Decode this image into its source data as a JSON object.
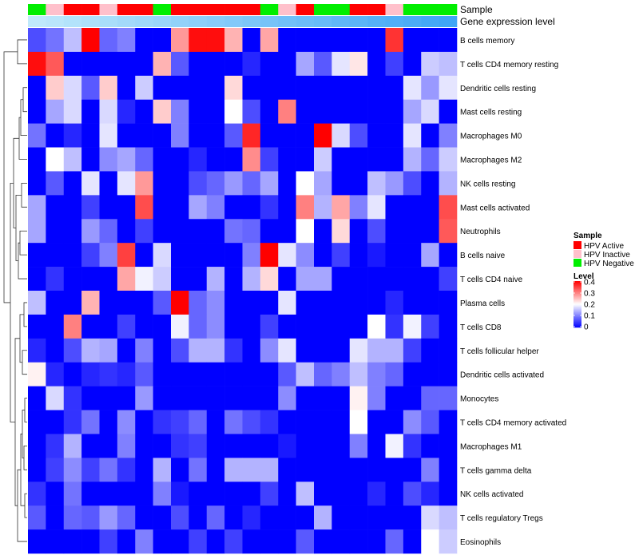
{
  "chart_data": {
    "type": "heatmap",
    "annotation_labels": {
      "sample": "Sample",
      "level": "Gene expression level"
    },
    "rows": [
      "B cells memory",
      "T cells CD4 memory resting",
      "Dendritic cells resting",
      "Mast cells resting",
      "Macrophages M0",
      "Macrophages M2",
      "NK cells resting",
      "Mast cells activated",
      "Neutrophils",
      "B cells naive",
      "T cells CD4 naive",
      "Plasma cells",
      "T cells CD8",
      "T cells follicular helper",
      "Dendritic cells activated",
      "Monocytes",
      "T cells CD4 memory activated",
      "Macrophages M1",
      "T cells gamma delta",
      "NK cells activated",
      "T cells regulatory  Tregs",
      "Eosinophils"
    ],
    "sample_groups": [
      "HPV Negative",
      "HPV Inactive",
      "HPV Active",
      "HPV Active",
      "HPV Inactive",
      "HPV Active",
      "HPV Active",
      "HPV Negative",
      "HPV Active",
      "HPV Active",
      "HPV Active",
      "HPV Active",
      "HPV Active",
      "HPV Negative",
      "HPV Inactive",
      "HPV Active",
      "HPV Negative",
      "HPV Negative",
      "HPV Active",
      "HPV Active",
      "HPV Inactive",
      "HPV Negative",
      "HPV Negative",
      "HPV Negative"
    ],
    "expression_gradient": [
      0.0,
      0.04,
      0.09,
      0.13,
      0.17,
      0.22,
      0.26,
      0.3,
      0.35,
      0.39,
      0.43,
      0.48,
      0.52,
      0.56,
      0.61,
      0.65,
      0.69,
      0.74,
      0.78,
      0.83,
      0.87,
      0.91,
      0.96,
      1.0
    ],
    "values": [
      [
        0.06,
        0.09,
        0.15,
        0.4,
        0.08,
        0.1,
        0.0,
        0.0,
        0.28,
        0.39,
        0.39,
        0.26,
        0.0,
        0.27,
        0.0,
        0.0,
        0.0,
        0.0,
        0.0,
        0.0,
        0.36,
        0.0,
        0.0,
        0.0
      ],
      [
        0.39,
        0.33,
        0.0,
        0.0,
        0.0,
        0.0,
        0.0,
        0.26,
        0.07,
        0.0,
        0.0,
        0.0,
        0.03,
        0.0,
        0.0,
        0.13,
        0.07,
        0.18,
        0.22,
        0.0,
        0.05,
        0.0,
        0.16,
        0.15
      ],
      [
        0.0,
        0.24,
        0.17,
        0.07,
        0.24,
        0.0,
        0.16,
        0.0,
        0.0,
        0.0,
        0.0,
        0.23,
        0.0,
        0.0,
        0.0,
        0.0,
        0.0,
        0.0,
        0.0,
        0.0,
        0.0,
        0.18,
        0.12,
        0.18
      ],
      [
        0.0,
        0.13,
        0.17,
        0.0,
        0.17,
        0.03,
        0.0,
        0.24,
        0.1,
        0.0,
        0.0,
        0.2,
        0.06,
        0.0,
        0.3,
        0.0,
        0.0,
        0.0,
        0.0,
        0.0,
        0.0,
        0.13,
        0.17,
        0.0
      ],
      [
        0.09,
        0.0,
        0.03,
        0.0,
        0.18,
        0.0,
        0.0,
        0.0,
        0.1,
        0.0,
        0.0,
        0.07,
        0.37,
        0.0,
        0.0,
        0.0,
        0.4,
        0.17,
        0.06,
        0.0,
        0.0,
        0.18,
        0.0,
        0.1
      ],
      [
        0.0,
        0.2,
        0.15,
        0.0,
        0.11,
        0.13,
        0.08,
        0.0,
        0.0,
        0.03,
        0.0,
        0.0,
        0.29,
        0.05,
        0.0,
        0.0,
        0.16,
        0.0,
        0.0,
        0.0,
        0.0,
        0.14,
        0.08,
        0.16
      ],
      [
        0.0,
        0.07,
        0.0,
        0.18,
        0.0,
        0.18,
        0.28,
        0.0,
        0.0,
        0.06,
        0.08,
        0.12,
        0.08,
        0.13,
        0.0,
        0.2,
        0.13,
        0.0,
        0.0,
        0.15,
        0.12,
        0.06,
        0.0,
        0.14
      ],
      [
        0.13,
        0.0,
        0.0,
        0.05,
        0.0,
        0.0,
        0.34,
        0.0,
        0.0,
        0.13,
        0.1,
        0.0,
        0.0,
        0.04,
        0.0,
        0.3,
        0.14,
        0.27,
        0.1,
        0.18,
        0.0,
        0.0,
        0.0,
        0.34
      ],
      [
        0.13,
        0.0,
        0.0,
        0.12,
        0.08,
        0.0,
        0.05,
        0.0,
        0.0,
        0.0,
        0.0,
        0.09,
        0.08,
        0.0,
        0.0,
        0.2,
        0.0,
        0.23,
        0.0,
        0.06,
        0.0,
        0.0,
        0.0,
        0.33
      ],
      [
        0.0,
        0.0,
        0.0,
        0.05,
        0.1,
        0.35,
        0.0,
        0.17,
        0.0,
        0.0,
        0.0,
        0.0,
        0.1,
        0.4,
        0.18,
        0.11,
        0.0,
        0.05,
        0.0,
        0.02,
        0.0,
        0.0,
        0.13,
        0.0
      ],
      [
        0.0,
        0.04,
        0.0,
        0.0,
        0.0,
        0.27,
        0.19,
        0.16,
        0.0,
        0.0,
        0.14,
        0.0,
        0.14,
        0.23,
        0.0,
        0.13,
        0.13,
        0.0,
        0.0,
        0.0,
        0.0,
        0.0,
        0.0,
        0.05
      ],
      [
        0.15,
        0.0,
        0.0,
        0.26,
        0.0,
        0.0,
        0.0,
        0.07,
        0.4,
        0.08,
        0.11,
        0.0,
        0.0,
        0.0,
        0.18,
        0.0,
        0.0,
        0.0,
        0.0,
        0.0,
        0.03,
        0.0,
        0.0,
        0.0
      ],
      [
        0.0,
        0.0,
        0.3,
        0.0,
        0.0,
        0.05,
        0.0,
        0.0,
        0.19,
        0.08,
        0.11,
        0.0,
        0.0,
        0.05,
        0.0,
        0.0,
        0.0,
        0.0,
        0.0,
        0.2,
        0.04,
        0.19,
        0.05,
        0.0
      ],
      [
        0.03,
        0.0,
        0.06,
        0.14,
        0.13,
        0.0,
        0.1,
        0.0,
        0.06,
        0.14,
        0.14,
        0.04,
        0.0,
        0.11,
        0.18,
        0.0,
        0.0,
        0.0,
        0.18,
        0.14,
        0.14,
        0.05,
        0.0,
        0.0
      ],
      [
        0.21,
        0.03,
        0.0,
        0.03,
        0.04,
        0.03,
        0.07,
        0.0,
        0.0,
        0.0,
        0.0,
        0.0,
        0.0,
        0.0,
        0.07,
        0.15,
        0.08,
        0.1,
        0.15,
        0.1,
        0.08,
        0.0,
        0.0,
        0.0
      ],
      [
        0.0,
        0.17,
        0.04,
        0.0,
        0.0,
        0.0,
        0.12,
        0.0,
        0.0,
        0.0,
        0.0,
        0.0,
        0.0,
        0.0,
        0.11,
        0.0,
        0.0,
        0.0,
        0.21,
        0.1,
        0.0,
        0.0,
        0.08,
        0.08
      ],
      [
        0.0,
        0.0,
        0.04,
        0.09,
        0.0,
        0.11,
        0.0,
        0.04,
        0.05,
        0.08,
        0.0,
        0.09,
        0.06,
        0.04,
        0.0,
        0.0,
        0.0,
        0.0,
        0.2,
        0.0,
        0.0,
        0.11,
        0.07,
        0.0
      ],
      [
        0.0,
        0.04,
        0.14,
        0.0,
        0.0,
        0.1,
        0.0,
        0.0,
        0.04,
        0.05,
        0.0,
        0.0,
        0.0,
        0.0,
        0.02,
        0.0,
        0.0,
        0.0,
        0.1,
        0.0,
        0.19,
        0.04,
        0.0,
        0.0
      ],
      [
        0.0,
        0.05,
        0.11,
        0.05,
        0.09,
        0.04,
        0.0,
        0.14,
        0.0,
        0.09,
        0.0,
        0.14,
        0.14,
        0.14,
        0.0,
        0.0,
        0.0,
        0.0,
        0.0,
        0.0,
        0.0,
        0.0,
        0.1,
        0.0
      ],
      [
        0.04,
        0.0,
        0.09,
        0.0,
        0.0,
        0.0,
        0.0,
        0.1,
        0.02,
        0.0,
        0.0,
        0.0,
        0.0,
        0.05,
        0.0,
        0.15,
        0.0,
        0.0,
        0.0,
        0.03,
        0.0,
        0.06,
        0.03,
        0.0
      ],
      [
        0.07,
        0.0,
        0.08,
        0.07,
        0.12,
        0.08,
        0.0,
        0.0,
        0.06,
        0.0,
        0.08,
        0.0,
        0.03,
        0.0,
        0.0,
        0.0,
        0.14,
        0.0,
        0.0,
        0.0,
        0.0,
        0.0,
        0.17,
        0.15
      ],
      [
        0.0,
        0.0,
        0.0,
        0.0,
        0.05,
        0.0,
        0.1,
        0.0,
        0.0,
        0.05,
        0.0,
        0.05,
        0.0,
        0.0,
        0.0,
        0.07,
        0.0,
        0.0,
        0.0,
        0.0,
        0.08,
        0.0,
        0.2,
        0.16
      ]
    ],
    "legend": {
      "sample_title": "Sample",
      "sample_entries": [
        {
          "label": "HPV Active",
          "color": "#ff0000"
        },
        {
          "label": "HPV Inactive",
          "color": "#ffc0cb"
        },
        {
          "label": "HPV Negative",
          "color": "#00ee00"
        }
      ],
      "level_title": "Level",
      "level_ticks": [
        "0.4",
        "0.3",
        "0.2",
        "0.1",
        "0"
      ],
      "level_tick_values": [
        0.4,
        0.3,
        0.2,
        0.1,
        0
      ],
      "level_range": [
        0,
        0.4
      ]
    },
    "colors": {
      "low": "#0000ff",
      "mid": "#ffffff",
      "high": "#ff0000",
      "gradient_light": "#bfe9fb",
      "gradient_dark": "#3fa6f6"
    }
  }
}
